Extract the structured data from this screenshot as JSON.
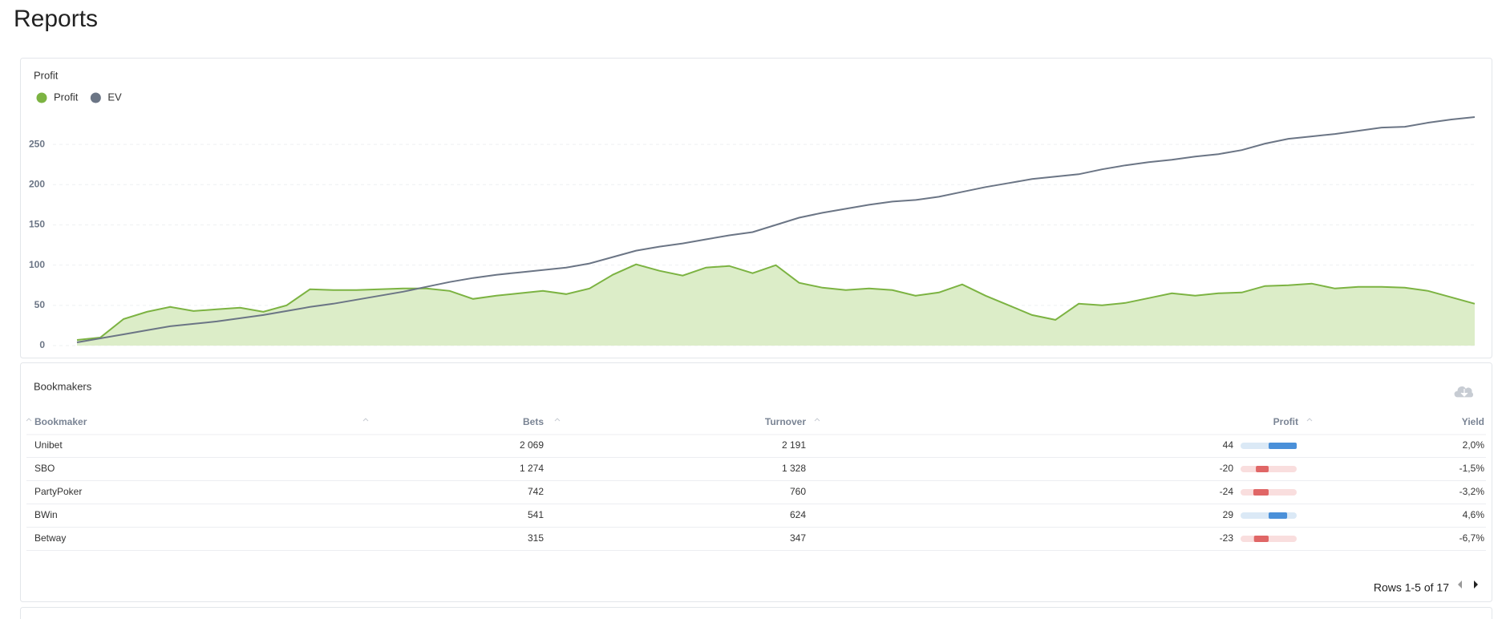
{
  "header": {
    "title": "Reports"
  },
  "chart_data": {
    "type": "line",
    "title": "Profit",
    "ylim": [
      0,
      290
    ],
    "yticks": [
      0,
      50,
      100,
      150,
      200,
      250
    ],
    "grid": true,
    "series": [
      {
        "name": "Profit",
        "color": "#7cb342",
        "area": true,
        "values": [
          7,
          10,
          33,
          42,
          48,
          43,
          45,
          47,
          42,
          50,
          70,
          69,
          69,
          70,
          71,
          71,
          68,
          58,
          62,
          65,
          68,
          64,
          71,
          88,
          101,
          93,
          87,
          97,
          99,
          90,
          100,
          78,
          72,
          69,
          71,
          69,
          62,
          66,
          76,
          62,
          50,
          38,
          32,
          52,
          50,
          53,
          59,
          65,
          62,
          65,
          66,
          74,
          75,
          77,
          71,
          73,
          73,
          72,
          68,
          60,
          52
        ]
      },
      {
        "name": "EV",
        "color": "#6b7585",
        "area": false,
        "values": [
          4,
          9,
          14,
          19,
          24,
          27,
          30,
          34,
          38,
          43,
          48,
          52,
          57,
          62,
          67,
          73,
          79,
          84,
          88,
          91,
          94,
          97,
          102,
          110,
          118,
          123,
          127,
          132,
          137,
          141,
          150,
          159,
          165,
          170,
          175,
          179,
          181,
          185,
          191,
          197,
          202,
          207,
          210,
          213,
          219,
          224,
          228,
          231,
          235,
          238,
          243,
          251,
          257,
          260,
          263,
          267,
          271,
          272,
          277,
          281,
          284
        ]
      }
    ]
  },
  "table": {
    "title": "Bookmakers",
    "columns": [
      "Bookmaker",
      "Bets",
      "Turnover",
      "Profit",
      "Yield"
    ],
    "rows": [
      [
        "Unibet",
        "2 069",
        "2 191",
        44,
        "2,0%"
      ],
      [
        "SBO",
        "1 274",
        "1 328",
        -20,
        "-1,5%"
      ],
      [
        "PartyPoker",
        "742",
        "760",
        -24,
        "-3,2%"
      ],
      [
        "BWin",
        "541",
        "624",
        29,
        "4,6%"
      ],
      [
        "Betway",
        "315",
        "347",
        -23,
        "-6,7%"
      ]
    ],
    "pagination": "Rows 1-5 of 17"
  }
}
